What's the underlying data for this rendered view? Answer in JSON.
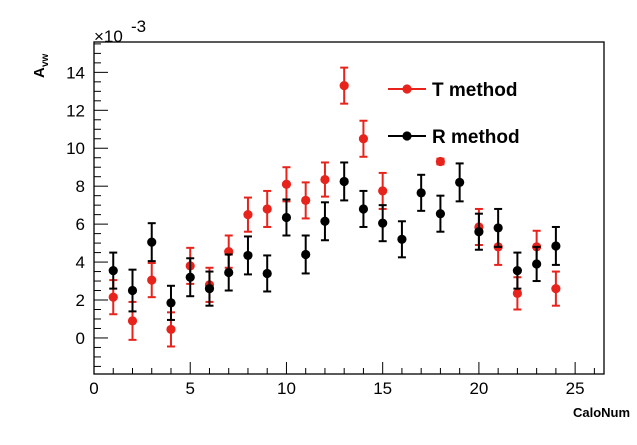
{
  "chart_data": {
    "type": "scatter",
    "title": "",
    "xlabel": "CaloNum",
    "ylabel_main": "A",
    "ylabel_sub": "vw",
    "y_multiplier_label": "×10",
    "y_multiplier_exp": "-3",
    "xlim": [
      0,
      26.5
    ],
    "ylim": [
      -1.9,
      15.6
    ],
    "x_ticks": [
      0,
      5,
      10,
      15,
      20,
      25
    ],
    "x_tick_labels": [
      "0",
      "5",
      "10",
      "15",
      "20",
      "25"
    ],
    "y_ticks": [
      0,
      2,
      4,
      6,
      8,
      10,
      12,
      14
    ],
    "y_tick_labels": [
      "0",
      "2",
      "4",
      "6",
      "8",
      "10",
      "12",
      "14"
    ],
    "legend_position": "top-right",
    "grid": false,
    "series": [
      {
        "name": "T method",
        "color": "#e8231c",
        "x": [
          1,
          2,
          3,
          4,
          5,
          6,
          7,
          8,
          9,
          10,
          11,
          12,
          13,
          14,
          15,
          18,
          20,
          21,
          22,
          23,
          24
        ],
        "y": [
          2.15,
          0.9,
          3.05,
          0.45,
          3.8,
          2.8,
          4.55,
          6.5,
          6.8,
          8.1,
          7.25,
          8.35,
          13.3,
          10.5,
          7.75,
          9.3,
          5.85,
          4.8,
          2.35,
          4.8,
          2.6
        ],
        "err": [
          0.9,
          1.0,
          0.9,
          0.9,
          0.95,
          0.9,
          0.85,
          0.9,
          0.95,
          0.9,
          0.95,
          0.9,
          0.95,
          0.95,
          0.95,
          0.15,
          0.95,
          0.95,
          0.85,
          0.85,
          0.9
        ]
      },
      {
        "name": "R method",
        "color": "#000000",
        "x": [
          1,
          2,
          3,
          4,
          5,
          6,
          7,
          8,
          9,
          10,
          11,
          12,
          13,
          14,
          15,
          16,
          17,
          18,
          19,
          20,
          21,
          22,
          23,
          24
        ],
        "y": [
          3.55,
          2.5,
          5.05,
          1.85,
          3.2,
          2.6,
          3.45,
          4.35,
          3.4,
          6.35,
          4.4,
          6.15,
          8.25,
          6.8,
          6.05,
          5.2,
          7.65,
          6.55,
          8.2,
          5.6,
          5.8,
          3.55,
          3.9,
          4.85
        ],
        "err": [
          0.95,
          1.1,
          1.0,
          0.9,
          1.0,
          0.9,
          0.95,
          1.0,
          0.95,
          0.95,
          1.0,
          1.0,
          1.0,
          0.95,
          0.95,
          0.95,
          0.95,
          0.95,
          1.0,
          0.95,
          1.0,
          0.95,
          0.9,
          1.0
        ]
      }
    ]
  }
}
